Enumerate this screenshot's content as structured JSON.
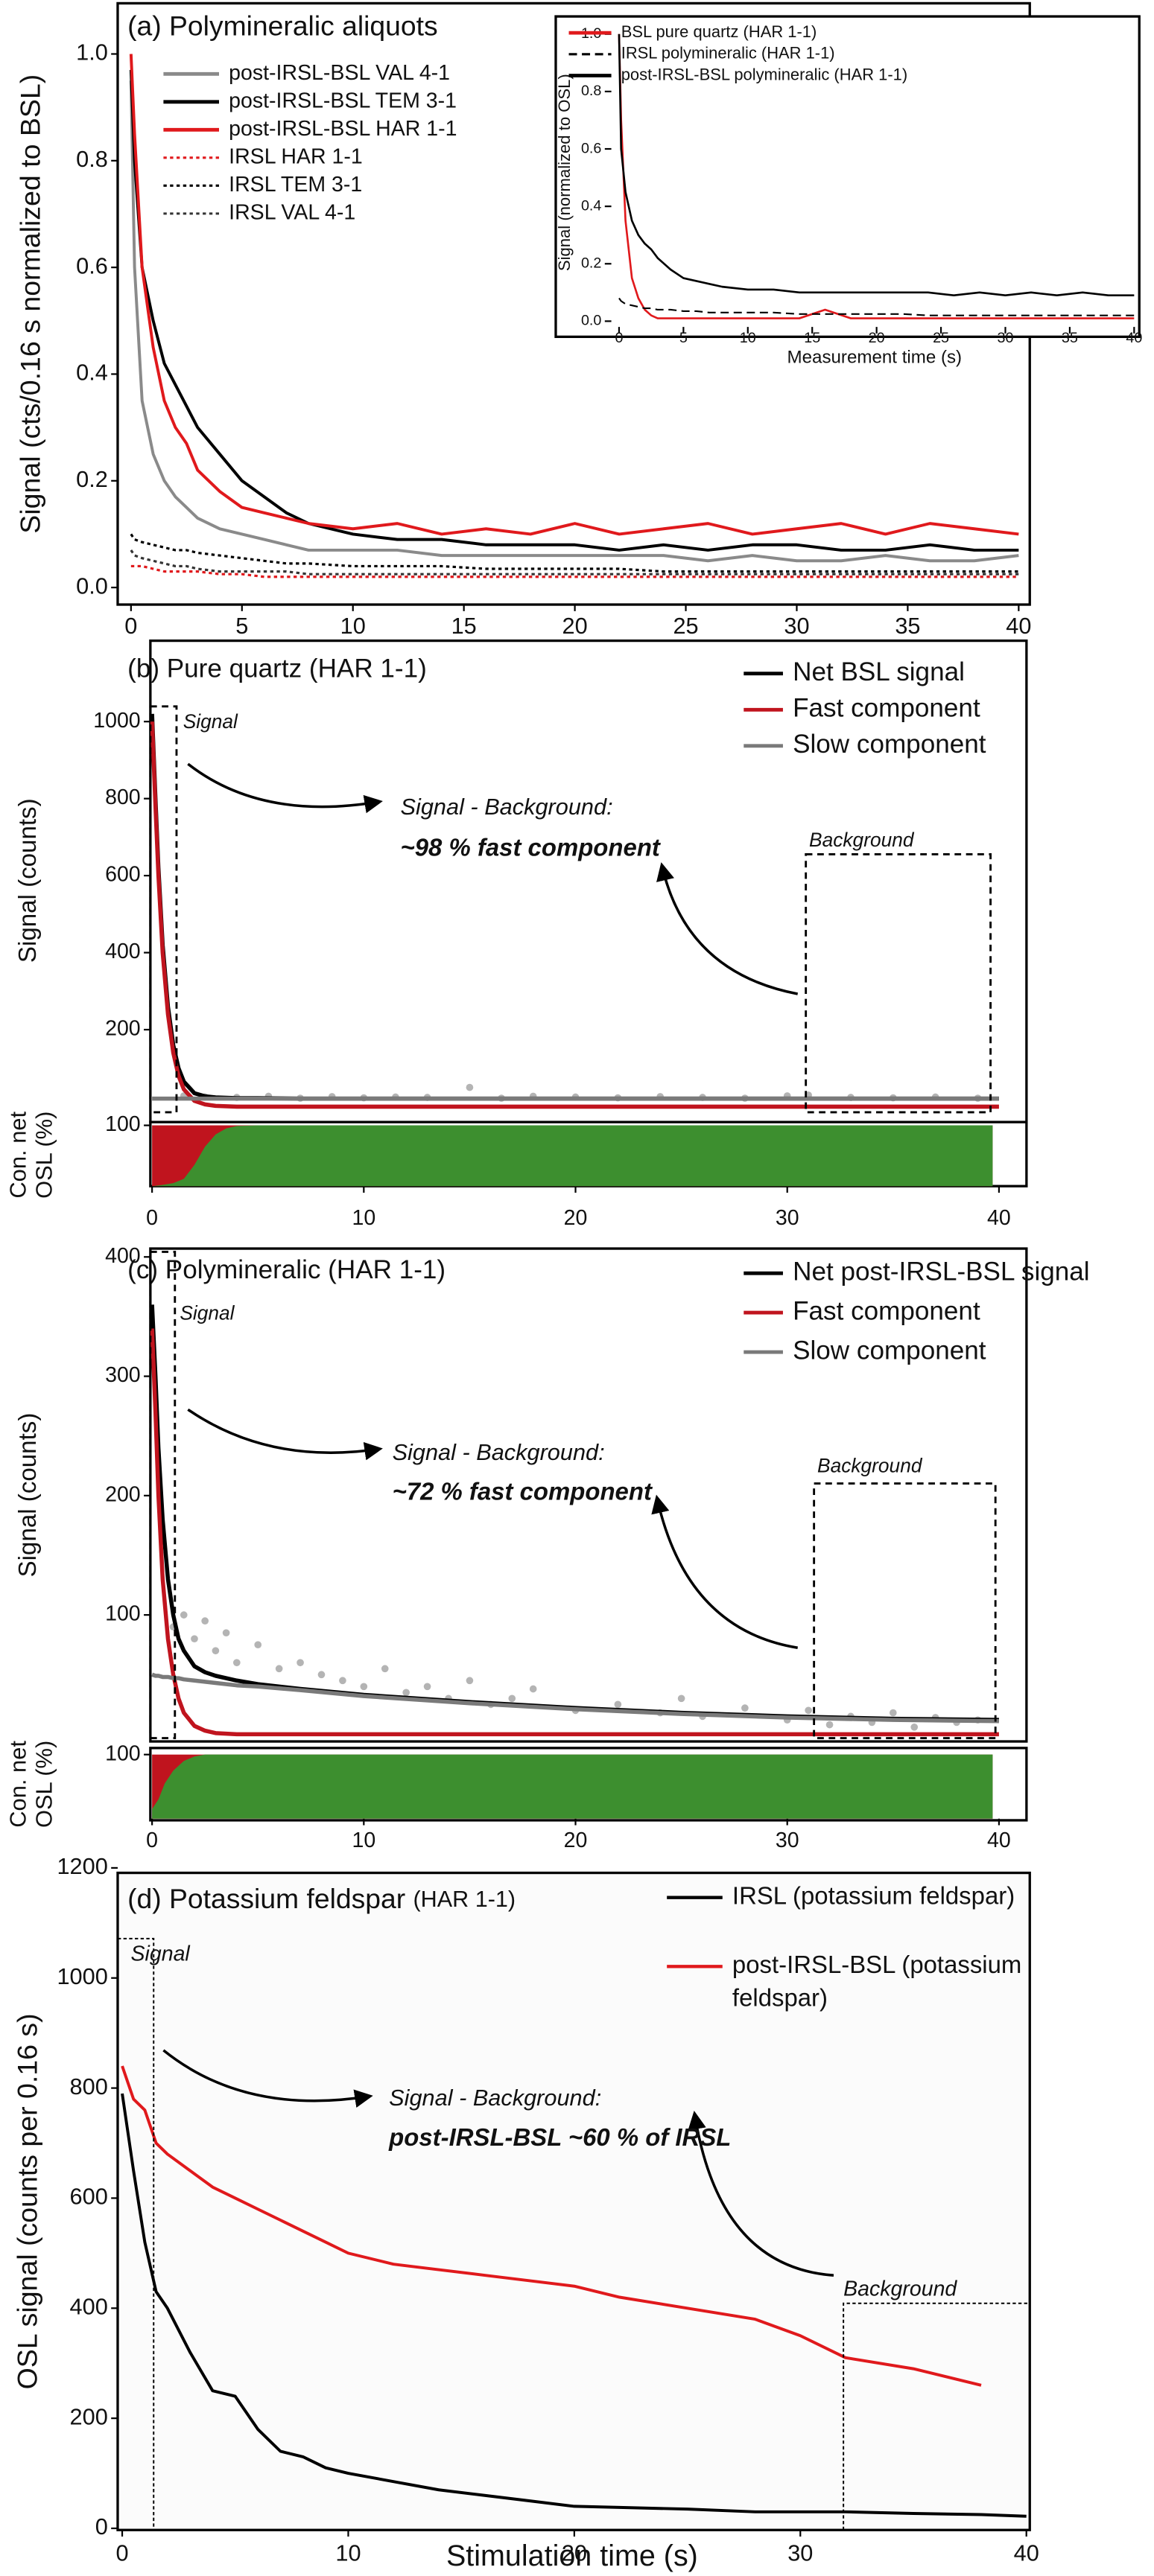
{
  "chart_data": [
    {
      "type": "line",
      "title": "(a) Polymineralic aliquots",
      "ylabel": "Signal (cts/0.16 s normalized to BSL)",
      "xlim": [
        -0.6,
        40.5
      ],
      "ylim": [
        -0.032,
        1.095
      ],
      "xticks": [
        0,
        5,
        10,
        15,
        20,
        25,
        30,
        35,
        40
      ],
      "yticks": [
        {
          "value": 0,
          "label": "0.0"
        },
        0.2,
        0.4,
        0.6,
        0.8,
        {
          "value": 1,
          "label": "1.0"
        }
      ],
      "x": [
        0,
        0.16,
        0.5,
        1,
        1.5,
        2,
        2.5,
        3,
        4,
        5,
        6,
        7,
        8,
        10,
        12,
        14,
        16,
        18,
        20,
        22,
        24,
        26,
        28,
        30,
        32,
        34,
        36,
        38,
        40
      ],
      "series": [
        {
          "name": "post-IRSL-BSL VAL 4-1",
          "color": "#8a8a8a",
          "values": [
            0.95,
            0.6,
            0.35,
            0.25,
            0.2,
            0.17,
            0.15,
            0.13,
            0.11,
            0.1,
            0.09,
            0.08,
            0.07,
            0.07,
            0.07,
            0.06,
            0.06,
            0.06,
            0.06,
            0.06,
            0.06,
            0.05,
            0.06,
            0.05,
            0.05,
            0.06,
            0.05,
            0.05,
            0.06
          ]
        },
        {
          "name": "post-IRSL-BSL TEM 3-1",
          "color": "#000000",
          "values": [
            0.97,
            0.8,
            0.6,
            0.5,
            0.42,
            0.38,
            0.34,
            0.3,
            0.25,
            0.2,
            0.17,
            0.14,
            0.12,
            0.1,
            0.09,
            0.09,
            0.08,
            0.08,
            0.08,
            0.07,
            0.08,
            0.07,
            0.08,
            0.08,
            0.07,
            0.07,
            0.08,
            0.07,
            0.07
          ]
        },
        {
          "name": "post-IRSL-BSL HAR 1-1",
          "color": "#e0191c",
          "values": [
            1,
            0.85,
            0.6,
            0.45,
            0.35,
            0.3,
            0.27,
            0.22,
            0.18,
            0.15,
            0.14,
            0.13,
            0.12,
            0.11,
            0.12,
            0.1,
            0.11,
            0.1,
            0.12,
            0.1,
            0.11,
            0.12,
            0.1,
            0.11,
            0.12,
            0.1,
            0.12,
            0.11,
            0.1
          ]
        },
        {
          "name": "IRSL HAR 1-1",
          "color": "#e0191c",
          "dash": "dotted",
          "values": [
            0.04,
            0.04,
            0.04,
            0.035,
            0.03,
            0.03,
            0.03,
            0.03,
            0.025,
            0.025,
            0.02,
            0.02,
            0.02,
            0.02,
            0.02,
            0.02,
            0.02,
            0.02,
            0.02,
            0.02,
            0.02,
            0.02,
            0.02,
            0.02,
            0.02,
            0.02,
            0.02,
            0.02,
            0.02
          ]
        },
        {
          "name": "IRSL TEM 3-1",
          "color": "#000000",
          "dash": "dotted",
          "values": [
            0.1,
            0.09,
            0.085,
            0.08,
            0.075,
            0.07,
            0.07,
            0.065,
            0.06,
            0.055,
            0.05,
            0.045,
            0.045,
            0.04,
            0.04,
            0.04,
            0.035,
            0.035,
            0.035,
            0.035,
            0.03,
            0.03,
            0.03,
            0.03,
            0.03,
            0.03,
            0.03,
            0.03,
            0.03
          ]
        },
        {
          "name": "IRSL VAL 4-1",
          "color": "#333333",
          "dash": "dotted",
          "values": [
            0.07,
            0.06,
            0.055,
            0.05,
            0.045,
            0.04,
            0.04,
            0.035,
            0.03,
            0.03,
            0.03,
            0.03,
            0.025,
            0.025,
            0.025,
            0.025,
            0.025,
            0.025,
            0.025,
            0.025,
            0.025,
            0.025,
            0.025,
            0.025,
            0.025,
            0.025,
            0.025,
            0.025,
            0.025
          ]
        }
      ]
    },
    {
      "type": "line",
      "xlabel": "Measurement time (s)",
      "ylabel": "Signal (normalized to OSL)",
      "xlim": [
        -0.6,
        40.4
      ],
      "ylim": [
        -0.02,
        1.05
      ],
      "xticks": [
        0,
        5,
        10,
        15,
        20,
        25,
        30,
        35,
        40
      ],
      "yticks": [
        {
          "value": 0,
          "label": "0.0"
        },
        0.2,
        0.4,
        0.6,
        0.8,
        {
          "value": 1,
          "label": "1.0"
        }
      ],
      "x": [
        0,
        0.16,
        0.5,
        1,
        1.5,
        2,
        2.5,
        3,
        4,
        5,
        6,
        7,
        8,
        10,
        12,
        14,
        16,
        18,
        20,
        22,
        24,
        26,
        28,
        30,
        32,
        34,
        36,
        38,
        40
      ],
      "series": [
        {
          "name": "BSL pure quartz (HAR 1-1)",
          "color": "#e0191c",
          "values": [
            1,
            0.7,
            0.35,
            0.15,
            0.08,
            0.04,
            0.02,
            0.01,
            0.01,
            0.01,
            0.01,
            0.01,
            0.01,
            0.01,
            0.01,
            0.01,
            0.04,
            0.01,
            0.01,
            0.01,
            0.01,
            0.01,
            0.01,
            0.01,
            0.01,
            0.01,
            0.01,
            0.01,
            0.01
          ]
        },
        {
          "name": "IRSL polymineralic (HAR 1-1)",
          "color": "#000000",
          "dash": "dashed",
          "values": [
            0.08,
            0.07,
            0.06,
            0.055,
            0.05,
            0.045,
            0.045,
            0.04,
            0.04,
            0.035,
            0.035,
            0.03,
            0.03,
            0.03,
            0.03,
            0.025,
            0.025,
            0.025,
            0.025,
            0.025,
            0.02,
            0.02,
            0.02,
            0.02,
            0.02,
            0.02,
            0.02,
            0.02,
            0.02
          ]
        },
        {
          "name": "post-IRSL-BSL polymineralic (HAR 1-1)",
          "color": "#000000",
          "values": [
            1,
            0.6,
            0.45,
            0.35,
            0.3,
            0.27,
            0.25,
            0.22,
            0.18,
            0.15,
            0.14,
            0.13,
            0.12,
            0.11,
            0.11,
            0.1,
            0.1,
            0.1,
            0.1,
            0.1,
            0.1,
            0.09,
            0.1,
            0.09,
            0.1,
            0.09,
            0.1,
            0.09,
            0.09
          ]
        }
      ]
    },
    {
      "type": "line",
      "title": "(b) Pure quartz (HAR 1-1)",
      "ylabel": "Signal (counts)",
      "xlim": [
        -0.08,
        41.3
      ],
      "ylim": [
        -40,
        1210
      ],
      "yticks": [
        200,
        400,
        600,
        800,
        1000
      ],
      "annotations": [
        "Signal",
        "Signal - Background:",
        "~98 % fast component",
        "Background"
      ],
      "points": {
        "color": "#b4b4b4",
        "x": [
          1.5,
          2.5,
          4,
          5.5,
          7,
          8.5,
          10,
          11.5,
          13,
          15,
          16.5,
          18,
          20,
          22,
          24,
          26,
          28,
          30,
          31,
          33,
          35,
          37,
          39
        ],
        "values": [
          28,
          25,
          24,
          27,
          22,
          26,
          23,
          25,
          24,
          50,
          22,
          27,
          25,
          23,
          26,
          24,
          22,
          28,
          30,
          24,
          23,
          25,
          22
        ]
      },
      "x": [
        0,
        0.16,
        0.3,
        0.5,
        0.75,
        1,
        1.25,
        1.5,
        2,
        2.5,
        3,
        4,
        5,
        7,
        10,
        15,
        20,
        25,
        30,
        35,
        40
      ],
      "series": [
        {
          "name": "Net BSL signal",
          "color": "#000000",
          "values": [
            1020,
            800,
            620,
            420,
            260,
            160,
            100,
            65,
            35,
            27,
            24,
            22,
            22,
            21,
            21,
            21,
            21,
            21,
            21,
            21,
            21
          ]
        },
        {
          "name": "Fast component",
          "color": "#c0141e",
          "values": [
            1000,
            780,
            600,
            400,
            240,
            140,
            80,
            45,
            15,
            6,
            2,
            0,
            0,
            0,
            0,
            0,
            0,
            0,
            0,
            0,
            0
          ]
        },
        {
          "name": "Slow component",
          "color": "#7a7a7a",
          "values": [
            21,
            21,
            21,
            21,
            21,
            21,
            21,
            21,
            21,
            21,
            21,
            21,
            21,
            21,
            21,
            21,
            21,
            21,
            21,
            21,
            21
          ]
        }
      ],
      "contribution": {
        "ylabel": [
          "Con. net",
          "OSL (%)"
        ],
        "xlim": [
          -0.08,
          41.3
        ],
        "ylim": [
          0,
          100
        ],
        "yticks": [
          100
        ],
        "xticks": [
          0,
          10,
          20,
          30,
          40
        ],
        "background": "#c0141e",
        "color": "#3d8f2f",
        "x": [
          0,
          0.5,
          1,
          1.5,
          2,
          2.5,
          3,
          3.5,
          4,
          5,
          39.7
        ],
        "values": [
          0,
          2,
          5,
          12,
          35,
          65,
          85,
          95,
          99,
          100,
          100
        ]
      }
    },
    {
      "type": "line",
      "title": "(c) Polymineralic (HAR 1-1)",
      "ylabel": "Signal (counts)",
      "xlim": [
        -0.08,
        41.3
      ],
      "ylim": [
        -6,
        407
      ],
      "yticks": [
        100,
        200,
        300,
        400
      ],
      "annotations": [
        "Signal",
        "Signal - Background:",
        "~72 % fast component",
        "Background"
      ],
      "points": {
        "color": "#b4b4b4",
        "x": [
          1,
          1.5,
          2,
          2.5,
          3,
          3.5,
          4,
          5,
          6,
          7,
          8,
          9,
          10,
          11,
          12,
          13,
          14,
          15,
          16,
          17,
          18,
          20,
          22,
          24,
          25,
          26,
          28,
          30,
          31,
          32,
          33,
          34,
          35,
          36,
          37,
          38,
          39
        ],
        "values": [
          90,
          100,
          80,
          95,
          70,
          85,
          60,
          75,
          55,
          60,
          50,
          45,
          40,
          55,
          35,
          40,
          30,
          45,
          25,
          30,
          38,
          20,
          25,
          18,
          30,
          15,
          22,
          12,
          20,
          8,
          15,
          10,
          18,
          6,
          14,
          10,
          12
        ]
      },
      "x": [
        0,
        0.16,
        0.3,
        0.5,
        0.75,
        1,
        1.25,
        1.5,
        2,
        2.5,
        3,
        4,
        5,
        7,
        10,
        15,
        20,
        25,
        30,
        35,
        40
      ],
      "series": [
        {
          "name": "Net post-IRSL-BSL signal",
          "color": "#000000",
          "values": [
            360,
            300,
            240,
            180,
            130,
            100,
            80,
            70,
            57,
            52,
            49,
            45,
            42,
            38,
            33,
            27,
            22,
            18,
            15,
            13,
            12
          ]
        },
        {
          "name": "Fast component",
          "color": "#c0141e",
          "values": [
            340,
            270,
            200,
            130,
            80,
            50,
            30,
            18,
            7,
            3,
            1,
            0,
            0,
            0,
            0,
            0,
            0,
            0,
            0,
            0,
            0
          ]
        },
        {
          "name": "Slow component",
          "color": "#7a7a7a",
          "values": [
            50,
            49,
            49,
            48,
            48,
            47,
            47,
            46,
            45,
            44,
            43,
            41,
            40,
            37,
            32,
            26,
            21,
            17,
            14,
            12,
            11
          ]
        }
      ],
      "contribution": {
        "ylabel": [
          "Con. net",
          "OSL (%)"
        ],
        "xlim": [
          -0.08,
          41.3
        ],
        "ylim": [
          0,
          100
        ],
        "yticks": [
          100
        ],
        "xticks": [
          0,
          10,
          20,
          30,
          40
        ],
        "background": "#c0141e",
        "color": "#3d8f2f",
        "x": [
          0,
          0.3,
          0.6,
          1,
          1.5,
          2,
          2.5,
          3,
          39.7
        ],
        "values": [
          15,
          30,
          55,
          75,
          90,
          97,
          100,
          100,
          100
        ]
      }
    },
    {
      "type": "line",
      "title": "(d) Potassium feldspar",
      "subtitle": "(HAR 1-1)",
      "xlabel": "Stimulation time (s)",
      "ylabel": "OSL signal (counts per 0.16 s)",
      "xlim": [
        -0.2,
        40.15
      ],
      "ylim": [
        -3,
        1191
      ],
      "xticks": [
        0,
        10,
        20,
        30,
        40
      ],
      "yticks": [
        0,
        200,
        400,
        600,
        800,
        1000,
        1200
      ],
      "annotations": [
        "Signal",
        "Signal - Background:",
        "post-IRSL-BSL ~60 % of IRSL",
        "Background"
      ],
      "x": [
        0,
        0.5,
        1,
        1.5,
        2,
        3,
        4,
        5,
        6,
        7,
        8,
        9,
        10,
        12,
        14,
        16,
        18,
        20,
        22,
        25,
        28,
        30,
        32,
        35,
        38,
        40
      ],
      "series": [
        {
          "name": "IRSL (potassium feldspar)",
          "color": "#000000",
          "values": [
            790,
            650,
            520,
            430,
            400,
            320,
            250,
            240,
            180,
            140,
            130,
            110,
            100,
            85,
            70,
            60,
            50,
            40,
            38,
            35,
            30,
            30,
            30,
            27,
            25,
            22
          ]
        },
        {
          "name": "post-IRSL-BSL (potassium feldspar)",
          "color": "#e0191c",
          "values": [
            840,
            780,
            760,
            700,
            680,
            650,
            620,
            600,
            580,
            560,
            540,
            520,
            500,
            480,
            470,
            460,
            450,
            440,
            420,
            400,
            380,
            350,
            310,
            290,
            260,
            null
          ]
        }
      ]
    }
  ]
}
